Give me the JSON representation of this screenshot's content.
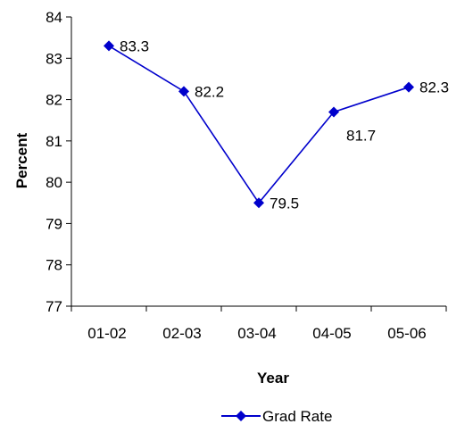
{
  "chart_data": {
    "type": "line",
    "title": "",
    "xlabel": "Year",
    "ylabel": "Percent",
    "ylim": [
      77,
      84
    ],
    "yticks": [
      "77",
      "78",
      "79",
      "80",
      "81",
      "82",
      "83",
      "84"
    ],
    "categories": [
      "01-02",
      "02-03",
      "03-04",
      "04-05",
      "05-06"
    ],
    "grid": false,
    "legend_position": "bottom",
    "series": [
      {
        "name": "Grad Rate",
        "values": [
          83.3,
          82.2,
          79.5,
          81.7,
          82.3
        ],
        "data_labels": [
          "83.3",
          "82.2",
          "79.5",
          "81.7",
          "82.3"
        ],
        "color": "#0000cc",
        "marker": "diamond"
      }
    ]
  }
}
